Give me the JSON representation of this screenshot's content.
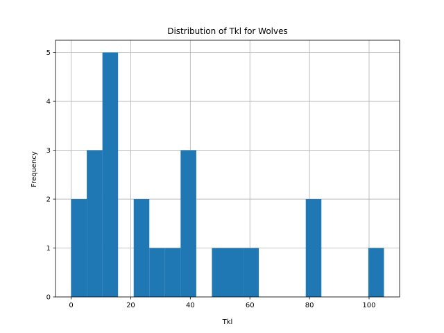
{
  "chart_data": {
    "type": "bar",
    "title": "Distribution of Tkl for Wolves",
    "xlabel": "Tkl",
    "ylabel": "Frequency",
    "xlim": [
      -5.25,
      110.25
    ],
    "ylim": [
      0,
      5.25
    ],
    "xticks": [
      0,
      20,
      40,
      60,
      80,
      100
    ],
    "yticks": [
      0,
      1,
      2,
      3,
      4,
      5
    ],
    "grid": true,
    "bar_color": "#1f77b4",
    "bins": [
      {
        "x0": 0,
        "x1": 5.25,
        "count": 2
      },
      {
        "x0": 5.25,
        "x1": 10.5,
        "count": 3
      },
      {
        "x0": 10.5,
        "x1": 15.75,
        "count": 5
      },
      {
        "x0": 15.75,
        "x1": 21,
        "count": 0
      },
      {
        "x0": 21,
        "x1": 26.25,
        "count": 2
      },
      {
        "x0": 26.25,
        "x1": 31.5,
        "count": 1
      },
      {
        "x0": 31.5,
        "x1": 36.75,
        "count": 1
      },
      {
        "x0": 36.75,
        "x1": 42,
        "count": 3
      },
      {
        "x0": 42,
        "x1": 47.25,
        "count": 0
      },
      {
        "x0": 47.25,
        "x1": 52.5,
        "count": 1
      },
      {
        "x0": 52.5,
        "x1": 57.75,
        "count": 1
      },
      {
        "x0": 57.75,
        "x1": 63,
        "count": 1
      },
      {
        "x0": 63,
        "x1": 68.25,
        "count": 0
      },
      {
        "x0": 68.25,
        "x1": 73.5,
        "count": 0
      },
      {
        "x0": 73.5,
        "x1": 78.75,
        "count": 0
      },
      {
        "x0": 78.75,
        "x1": 84,
        "count": 2
      },
      {
        "x0": 84,
        "x1": 89.25,
        "count": 0
      },
      {
        "x0": 89.25,
        "x1": 94.5,
        "count": 0
      },
      {
        "x0": 94.5,
        "x1": 99.75,
        "count": 0
      },
      {
        "x0": 99.75,
        "x1": 105,
        "count": 1
      }
    ]
  }
}
